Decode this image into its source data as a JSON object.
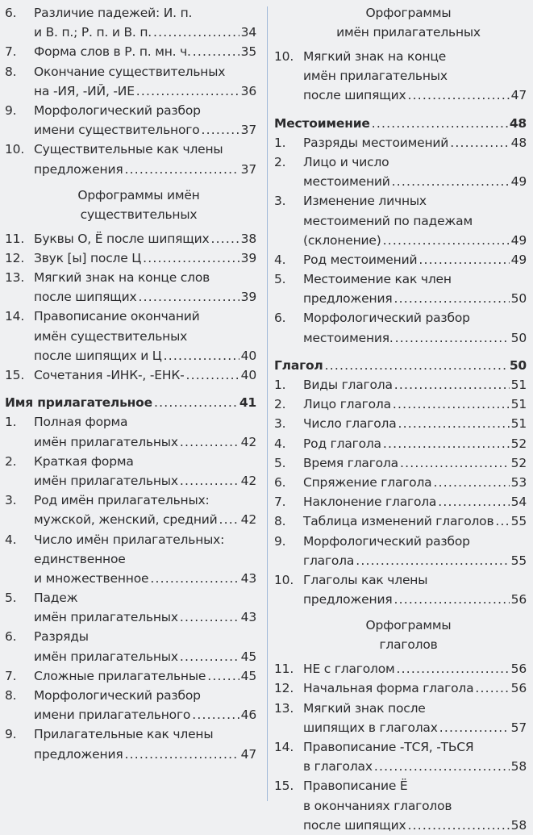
{
  "left_column": [
    {
      "type": "item",
      "num": "6.",
      "lines": [
        "Различие падежей: И. п.",
        "и В. п.; Р. п. и В. п."
      ],
      "page": "34"
    },
    {
      "type": "item",
      "num": "7.",
      "lines": [
        "Форма слов в Р. п. мн. ч."
      ],
      "page": "35"
    },
    {
      "type": "item",
      "num": "8.",
      "lines": [
        "Окончание существительных",
        "на -ИЯ, -ИЙ, -ИЕ"
      ],
      "page": "36"
    },
    {
      "type": "item",
      "num": "9.",
      "lines": [
        "Морфологический разбор",
        "имени существительного"
      ],
      "page": "37"
    },
    {
      "type": "item",
      "num": "10.",
      "lines": [
        "Существительные как члены",
        "предложения"
      ],
      "page": "37"
    },
    {
      "type": "heading",
      "lines": [
        "Орфограммы имён",
        "существительных"
      ]
    },
    {
      "type": "item",
      "num": "11.",
      "lines": [
        "Буквы О, Ё после шипящих"
      ],
      "page": "38"
    },
    {
      "type": "item",
      "num": "12.",
      "lines": [
        "Звук [ы] после Ц"
      ],
      "page": "39"
    },
    {
      "type": "item",
      "num": "13.",
      "lines": [
        "Мягкий знак на конце слов",
        "после шипящих"
      ],
      "page": "39"
    },
    {
      "type": "item",
      "num": "14.",
      "lines": [
        "Правописание окончаний",
        "имён существительных",
        "после шипящих и Ц"
      ],
      "page": "40"
    },
    {
      "type": "item",
      "num": "15.",
      "lines": [
        "Сочетания -ИНК-, -ЕНК-"
      ],
      "page": "40"
    },
    {
      "type": "section",
      "lines": [
        "Имя прилагательное"
      ],
      "page": "41"
    },
    {
      "type": "item",
      "num": "1.",
      "lines": [
        "Полная форма",
        "имён прилагательных"
      ],
      "page": "42"
    },
    {
      "type": "item",
      "num": "2.",
      "lines": [
        "Краткая форма",
        "имён прилагательных"
      ],
      "page": "42"
    },
    {
      "type": "item",
      "num": "3.",
      "lines": [
        "Род имён прилагательных:",
        "мужской, женский, средний"
      ],
      "page": "42"
    },
    {
      "type": "item",
      "num": "4.",
      "lines": [
        "Число имён прилагательных:",
        "единственное",
        "и множественное"
      ],
      "page": "43"
    },
    {
      "type": "item",
      "num": "5.",
      "lines": [
        "Падеж",
        "имён прилагательных"
      ],
      "page": "43"
    },
    {
      "type": "item",
      "num": "6.",
      "lines": [
        "Разряды",
        "имён прилагательных"
      ],
      "page": "45"
    },
    {
      "type": "item",
      "num": "7.",
      "lines": [
        "Сложные прилагательные"
      ],
      "page": "45"
    },
    {
      "type": "item",
      "num": "8.",
      "lines": [
        "Морфологический разбор",
        "имени прилагательного"
      ],
      "page": "46"
    },
    {
      "type": "item",
      "num": "9.",
      "lines": [
        "Прилагательные как члены",
        "предложения"
      ],
      "page": "47"
    }
  ],
  "right_column": [
    {
      "type": "heading",
      "lines": [
        "Орфограммы",
        "имён прилагательных"
      ]
    },
    {
      "type": "item",
      "num": "10.",
      "lines": [
        "Мягкий знак на конце",
        "имён прилагательных",
        "после шипящих"
      ],
      "page": "47"
    },
    {
      "type": "section",
      "lines": [
        "Местоимение"
      ],
      "page": "48"
    },
    {
      "type": "item",
      "num": "1.",
      "lines": [
        "Разряды местоимений"
      ],
      "page": "48"
    },
    {
      "type": "item",
      "num": "2.",
      "lines": [
        "Лицо и число",
        "местоимений"
      ],
      "page": "49"
    },
    {
      "type": "item",
      "num": "3.",
      "lines": [
        "Изменение личных",
        "местоимений по падежам",
        "(склонение)"
      ],
      "page": "49"
    },
    {
      "type": "item",
      "num": "4.",
      "lines": [
        "Род местоимений"
      ],
      "page": "49"
    },
    {
      "type": "item",
      "num": "5.",
      "lines": [
        "Местоимение как член",
        "предложения"
      ],
      "page": "50"
    },
    {
      "type": "item",
      "num": "6.",
      "lines": [
        "Морфологический разбор",
        "местоимения."
      ],
      "page": "50"
    },
    {
      "type": "section",
      "lines": [
        "Глагол"
      ],
      "page": "50"
    },
    {
      "type": "item",
      "num": "1.",
      "lines": [
        "Виды глагола"
      ],
      "page": "51"
    },
    {
      "type": "item",
      "num": "2.",
      "lines": [
        "Лицо глагола"
      ],
      "page": "51"
    },
    {
      "type": "item",
      "num": "3.",
      "lines": [
        "Число глагола"
      ],
      "page": "51"
    },
    {
      "type": "item",
      "num": "4.",
      "lines": [
        "Род глагола"
      ],
      "page": "52"
    },
    {
      "type": "item",
      "num": "5.",
      "lines": [
        "Время глагола"
      ],
      "page": "52"
    },
    {
      "type": "item",
      "num": "6.",
      "lines": [
        "Спряжение глагола"
      ],
      "page": "53"
    },
    {
      "type": "item",
      "num": "7.",
      "lines": [
        "Наклонение глагола"
      ],
      "page": "54"
    },
    {
      "type": "item",
      "num": "8.",
      "lines": [
        "Таблица изменений глаголов"
      ],
      "page": "55"
    },
    {
      "type": "item",
      "num": "9.",
      "lines": [
        "Морфологический разбор",
        "глагола"
      ],
      "page": "55"
    },
    {
      "type": "item",
      "num": "10.",
      "lines": [
        "Глаголы как члены",
        "предложения"
      ],
      "page": "56"
    },
    {
      "type": "heading",
      "lines": [
        "Орфограммы",
        "глаголов"
      ]
    },
    {
      "type": "item",
      "num": "11.",
      "lines": [
        "НЕ с глаголом"
      ],
      "page": "56"
    },
    {
      "type": "item",
      "num": "12.",
      "lines": [
        "Начальная форма глагола"
      ],
      "page": "56"
    },
    {
      "type": "item",
      "num": "13.",
      "lines": [
        "Мягкий знак после",
        "шипящих в глаголах"
      ],
      "page": "57"
    },
    {
      "type": "item",
      "num": "14.",
      "lines": [
        "Правописание -ТСЯ, -ТЬСЯ",
        "в глаголах"
      ],
      "page": "58"
    },
    {
      "type": "item",
      "num": "15.",
      "lines": [
        "Правописание Ё",
        "в окончаниях глаголов",
        "после шипящих"
      ],
      "page": "58"
    }
  ],
  "colors": {
    "background": "#eff0f2",
    "text": "#2b2b2d",
    "divider": "#9fb8d8"
  }
}
